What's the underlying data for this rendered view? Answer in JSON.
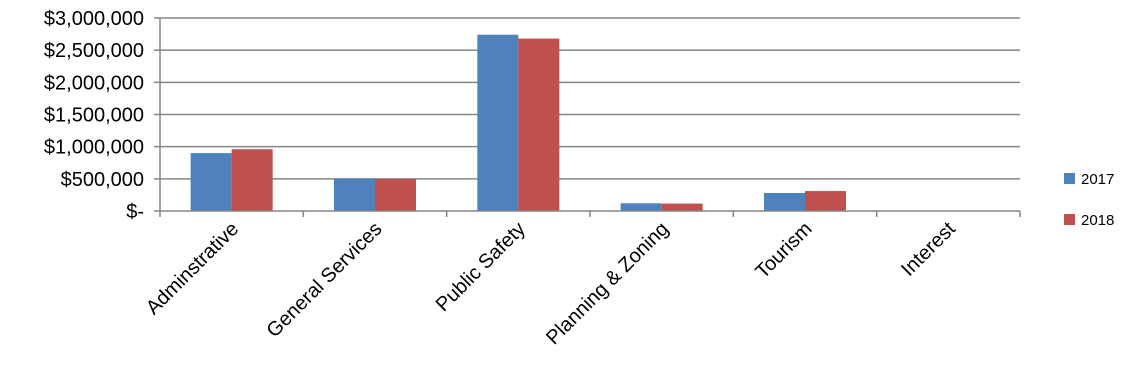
{
  "chart_data": {
    "type": "bar",
    "categories": [
      "Adminstrative",
      "General Services",
      "Public Safety",
      "Planning & Zoning",
      "Tourism",
      "Interest"
    ],
    "series": [
      {
        "name": "2017",
        "color": "#4F81BD",
        "values": [
          900000,
          500000,
          2740000,
          120000,
          280000,
          0
        ]
      },
      {
        "name": "2018",
        "color": "#C0504D",
        "values": [
          960000,
          495000,
          2680000,
          115000,
          310000,
          0
        ]
      }
    ],
    "y_ticks": [
      {
        "value": 0,
        "label": "$-"
      },
      {
        "value": 500000,
        "label": "$500,000"
      },
      {
        "value": 1000000,
        "label": "$1,000,000"
      },
      {
        "value": 1500000,
        "label": "$1,500,000"
      },
      {
        "value": 2000000,
        "label": "$2,000,000"
      },
      {
        "value": 2500000,
        "label": "$2,500,000"
      },
      {
        "value": 3000000,
        "label": "$3,000,000"
      }
    ],
    "ylim": [
      0,
      3000000
    ],
    "grid": true,
    "legend_position": "right",
    "title": "",
    "xlabel": "",
    "ylabel": ""
  }
}
